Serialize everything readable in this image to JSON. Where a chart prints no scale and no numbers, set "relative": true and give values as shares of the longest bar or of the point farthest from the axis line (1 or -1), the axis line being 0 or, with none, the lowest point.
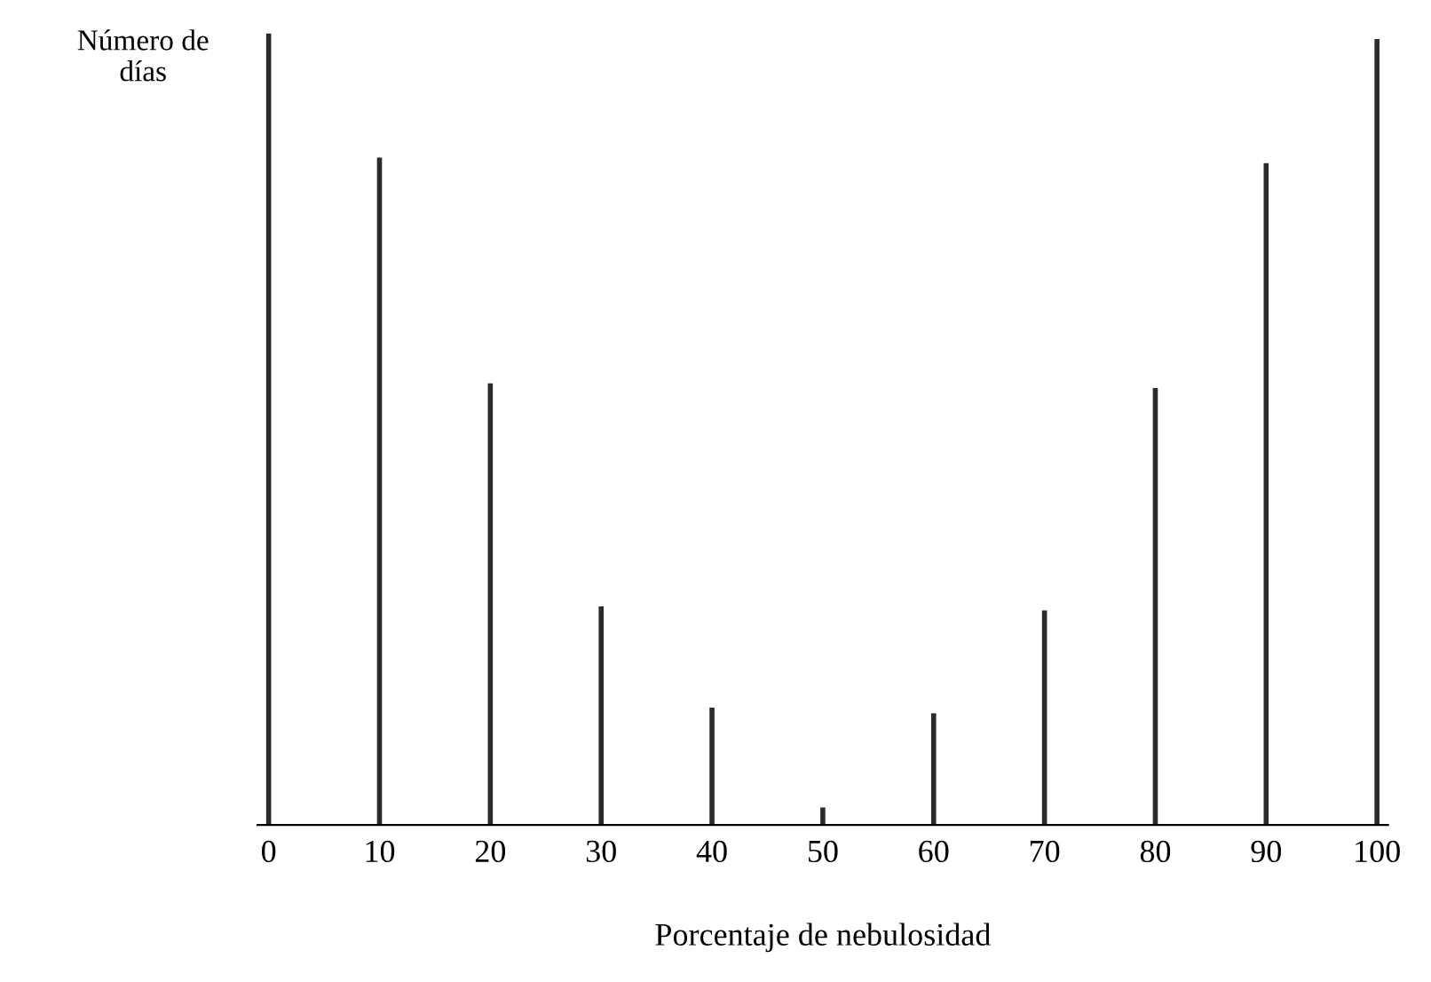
{
  "chart_data": {
    "type": "bar",
    "relative": true,
    "x": [
      0,
      10,
      20,
      30,
      40,
      50,
      60,
      70,
      80,
      90,
      100
    ],
    "values": [
      1,
      0.843,
      0.558,
      0.276,
      0.148,
      0.022,
      0.141,
      0.271,
      0.552,
      0.836,
      0.993
    ],
    "color": "#2b2b2b",
    "xlim": [
      -1,
      101
    ],
    "xticks": [
      0,
      10,
      20,
      30,
      40,
      50,
      60,
      70,
      80,
      90,
      100
    ],
    "xlabel": "Porcentaje de nebulosidad",
    "ylabel": "Número de\ndías",
    "grid": false
  }
}
